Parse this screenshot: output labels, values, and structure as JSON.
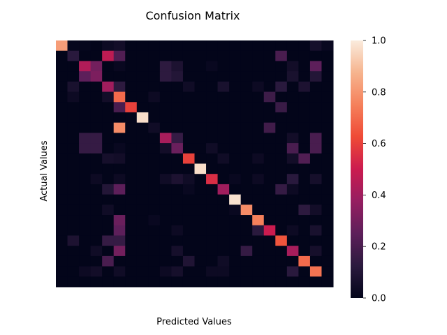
{
  "chart_data": {
    "type": "heatmap",
    "title": "Confusion Matrix",
    "xlabel": "Predicted Values",
    "ylabel": "Actual Values",
    "colorbar": {
      "min": 0.0,
      "max": 1.0,
      "ticks": [
        "0.0",
        "0.2",
        "0.4",
        "0.6",
        "0.8",
        "1.0"
      ]
    },
    "colormap": "rocket",
    "colormap_stops": [
      "#03051a",
      "#2b1a3e",
      "#5d1f5a",
      "#951e61",
      "#cb1b4f",
      "#ef4a36",
      "#f5805b",
      "#f6b48e",
      "#faebdd"
    ],
    "x_tick_labels_shown": false,
    "y_tick_labels_shown": false,
    "rows": 24,
    "cols": 24,
    "matrix": [
      [
        0.82,
        0.01,
        0.01,
        0.0,
        0.03,
        0.05,
        0.0,
        0.0,
        0.0,
        0.0,
        0.0,
        0.0,
        0.0,
        0.0,
        0.0,
        0.0,
        0.0,
        0.0,
        0.0,
        0.0,
        0.0,
        0.0,
        0.06,
        0.02
      ],
      [
        0.0,
        0.12,
        0.0,
        0.0,
        0.47,
        0.22,
        0.0,
        0.0,
        0.0,
        0.0,
        0.0,
        0.0,
        0.0,
        0.0,
        0.0,
        0.0,
        0.0,
        0.0,
        0.0,
        0.2,
        0.0,
        0.0,
        0.0,
        0.0
      ],
      [
        0.0,
        0.0,
        0.44,
        0.3,
        0.0,
        0.02,
        0.0,
        0.0,
        0.0,
        0.13,
        0.08,
        0.0,
        0.0,
        0.02,
        0.0,
        0.0,
        0.0,
        0.0,
        0.0,
        0.0,
        0.05,
        0.0,
        0.25,
        0.0
      ],
      [
        0.0,
        0.0,
        0.25,
        0.32,
        0.0,
        0.0,
        0.0,
        0.0,
        0.0,
        0.13,
        0.1,
        0.0,
        0.0,
        0.0,
        0.0,
        0.0,
        0.0,
        0.0,
        0.0,
        0.0,
        0.07,
        0.0,
        0.1,
        0.0
      ],
      [
        0.0,
        0.07,
        0.0,
        0.0,
        0.4,
        0.13,
        0.0,
        0.0,
        0.0,
        0.0,
        0.0,
        0.04,
        0.0,
        0.0,
        0.07,
        0.0,
        0.0,
        0.03,
        0.0,
        0.12,
        0.0,
        0.08,
        0.0,
        0.0
      ],
      [
        0.0,
        0.03,
        0.0,
        0.0,
        0.05,
        0.7,
        0.0,
        0.0,
        0.03,
        0.0,
        0.0,
        0.0,
        0.0,
        0.0,
        0.0,
        0.0,
        0.0,
        0.0,
        0.17,
        0.0,
        0.0,
        0.0,
        0.0,
        0.0
      ],
      [
        0.0,
        0.0,
        0.0,
        0.0,
        0.0,
        0.2,
        0.6,
        0.0,
        0.0,
        0.0,
        0.0,
        0.0,
        0.0,
        0.0,
        0.0,
        0.0,
        0.0,
        0.0,
        0.0,
        0.16,
        0.0,
        0.0,
        0.0,
        0.0
      ],
      [
        0.0,
        0.0,
        0.0,
        0.0,
        0.0,
        0.0,
        0.0,
        0.97,
        0.0,
        0.0,
        0.0,
        0.0,
        0.0,
        0.0,
        0.0,
        0.0,
        0.0,
        0.0,
        0.0,
        0.0,
        0.0,
        0.0,
        0.0,
        0.0
      ],
      [
        0.0,
        0.0,
        0.0,
        0.0,
        0.0,
        0.78,
        0.0,
        0.0,
        0.04,
        0.0,
        0.0,
        0.0,
        0.0,
        0.0,
        0.0,
        0.0,
        0.0,
        0.0,
        0.18,
        0.0,
        0.0,
        0.0,
        0.0,
        0.0
      ],
      [
        0.0,
        0.0,
        0.15,
        0.15,
        0.0,
        0.0,
        0.0,
        0.0,
        0.0,
        0.42,
        0.15,
        0.0,
        0.0,
        0.0,
        0.0,
        0.0,
        0.0,
        0.0,
        0.0,
        0.0,
        0.05,
        0.0,
        0.2,
        0.0
      ],
      [
        0.0,
        0.0,
        0.15,
        0.15,
        0.0,
        0.02,
        0.0,
        0.0,
        0.0,
        0.05,
        0.28,
        0.0,
        0.0,
        0.04,
        0.0,
        0.0,
        0.0,
        0.0,
        0.0,
        0.0,
        0.2,
        0.0,
        0.2,
        0.0
      ],
      [
        0.0,
        0.0,
        0.0,
        0.0,
        0.06,
        0.05,
        0.0,
        0.0,
        0.0,
        0.0,
        0.0,
        0.6,
        0.0,
        0.0,
        0.04,
        0.0,
        0.0,
        0.03,
        0.0,
        0.0,
        0.05,
        0.22,
        0.0,
        0.0
      ],
      [
        0.0,
        0.0,
        0.0,
        0.0,
        0.0,
        0.0,
        0.0,
        0.0,
        0.0,
        0.0,
        0.0,
        0.0,
        0.97,
        0.0,
        0.0,
        0.0,
        0.0,
        0.0,
        0.0,
        0.0,
        0.0,
        0.0,
        0.0,
        0.0
      ],
      [
        0.0,
        0.0,
        0.0,
        0.03,
        0.0,
        0.03,
        0.0,
        0.0,
        0.0,
        0.04,
        0.08,
        0.04,
        0.0,
        0.55,
        0.0,
        0.02,
        0.0,
        0.03,
        0.0,
        0.0,
        0.12,
        0.0,
        0.06,
        0.0
      ],
      [
        0.0,
        0.0,
        0.0,
        0.0,
        0.1,
        0.25,
        0.0,
        0.0,
        0.0,
        0.0,
        0.0,
        0.02,
        0.0,
        0.0,
        0.4,
        0.0,
        0.0,
        0.0,
        0.0,
        0.15,
        0.03,
        0.0,
        0.0,
        0.0
      ],
      [
        0.0,
        0.0,
        0.0,
        0.0,
        0.0,
        0.0,
        0.0,
        0.0,
        0.0,
        0.0,
        0.0,
        0.0,
        0.0,
        0.0,
        0.0,
        0.98,
        0.0,
        0.0,
        0.0,
        0.0,
        0.0,
        0.0,
        0.0,
        0.0
      ],
      [
        0.0,
        0.0,
        0.0,
        0.0,
        0.04,
        0.0,
        0.0,
        0.0,
        0.0,
        0.0,
        0.0,
        0.0,
        0.0,
        0.0,
        0.0,
        0.02,
        0.78,
        0.0,
        0.0,
        0.0,
        0.0,
        0.13,
        0.05,
        0.0
      ],
      [
        0.0,
        0.0,
        0.0,
        0.0,
        0.0,
        0.28,
        0.0,
        0.0,
        0.02,
        0.0,
        0.0,
        0.0,
        0.0,
        0.0,
        0.0,
        0.0,
        0.0,
        0.75,
        0.0,
        0.0,
        0.0,
        0.0,
        0.0,
        0.0
      ],
      [
        0.0,
        0.0,
        0.0,
        0.0,
        0.0,
        0.25,
        0.0,
        0.0,
        0.0,
        0.0,
        0.03,
        0.0,
        0.0,
        0.0,
        0.0,
        0.0,
        0.0,
        0.12,
        0.5,
        0.0,
        0.03,
        0.0,
        0.07,
        0.0
      ],
      [
        0.0,
        0.08,
        0.0,
        0.0,
        0.15,
        0.15,
        0.0,
        0.0,
        0.0,
        0.0,
        0.0,
        0.0,
        0.0,
        0.0,
        0.0,
        0.0,
        0.0,
        0.0,
        0.0,
        0.65,
        0.0,
        0.0,
        0.0,
        0.0
      ],
      [
        0.0,
        0.0,
        0.0,
        0.04,
        0.0,
        0.3,
        0.0,
        0.0,
        0.0,
        0.0,
        0.06,
        0.0,
        0.0,
        0.0,
        0.0,
        0.0,
        0.15,
        0.0,
        0.0,
        0.0,
        0.42,
        0.0,
        0.06,
        0.0
      ],
      [
        0.0,
        0.0,
        0.0,
        0.0,
        0.2,
        0.0,
        0.0,
        0.0,
        0.0,
        0.0,
        0.0,
        0.09,
        0.0,
        0.0,
        0.04,
        0.0,
        0.0,
        0.0,
        0.0,
        0.0,
        0.0,
        0.7,
        0.0,
        0.0
      ],
      [
        0.0,
        0.0,
        0.03,
        0.05,
        0.0,
        0.04,
        0.0,
        0.0,
        0.0,
        0.03,
        0.06,
        0.0,
        0.0,
        0.03,
        0.03,
        0.0,
        0.0,
        0.0,
        0.0,
        0.0,
        0.12,
        0.0,
        0.72,
        0.0
      ],
      [
        0.0,
        0.0,
        0.0,
        0.0,
        0.0,
        0.0,
        0.0,
        0.0,
        0.0,
        0.0,
        0.0,
        0.0,
        0.0,
        0.0,
        0.0,
        0.0,
        0.0,
        0.0,
        0.0,
        0.0,
        0.0,
        0.0,
        0.0,
        0.0
      ]
    ]
  }
}
